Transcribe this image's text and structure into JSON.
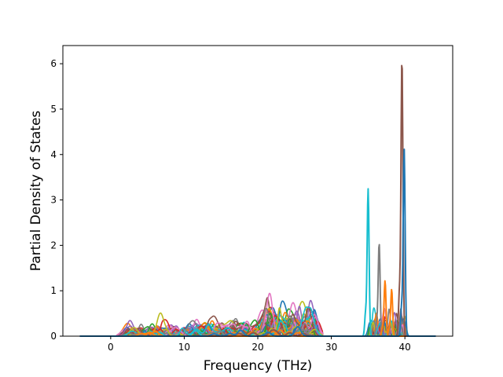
{
  "chart_data": {
    "type": "line",
    "title": "",
    "xlabel": "Frequency (THz)",
    "ylabel": "Partial Density of States",
    "xlim": [
      -6.5,
      46.5
    ],
    "ylim": [
      0,
      6.4
    ],
    "xticks": [
      0,
      10,
      20,
      30,
      40
    ],
    "yticks": [
      0,
      1,
      2,
      3,
      4,
      5,
      6
    ],
    "grid": false,
    "legend": "none",
    "palette": [
      "#1f77b4",
      "#ff7f0e",
      "#2ca02c",
      "#d62728",
      "#9467bd",
      "#8c564b",
      "#e377c2",
      "#7f7f7f",
      "#bcbd22",
      "#17becf"
    ],
    "x_range_of_data": [
      -4.2,
      44.2
    ],
    "notes_peaks": [
      {
        "x": 35.0,
        "y": 3.24,
        "color": "#17becf"
      },
      {
        "x": 36.5,
        "y": 2.05,
        "color": "#7f7f7f"
      },
      {
        "x": 37.3,
        "y": 1.22,
        "color": "#ff7f0e"
      },
      {
        "x": 38.2,
        "y": 1.03,
        "color": "#ff7f0e"
      },
      {
        "x": 39.6,
        "y": 6.12,
        "color": "#8c564b"
      },
      {
        "x": 39.9,
        "y": 4.13,
        "color": "#1f77b4"
      }
    ]
  }
}
